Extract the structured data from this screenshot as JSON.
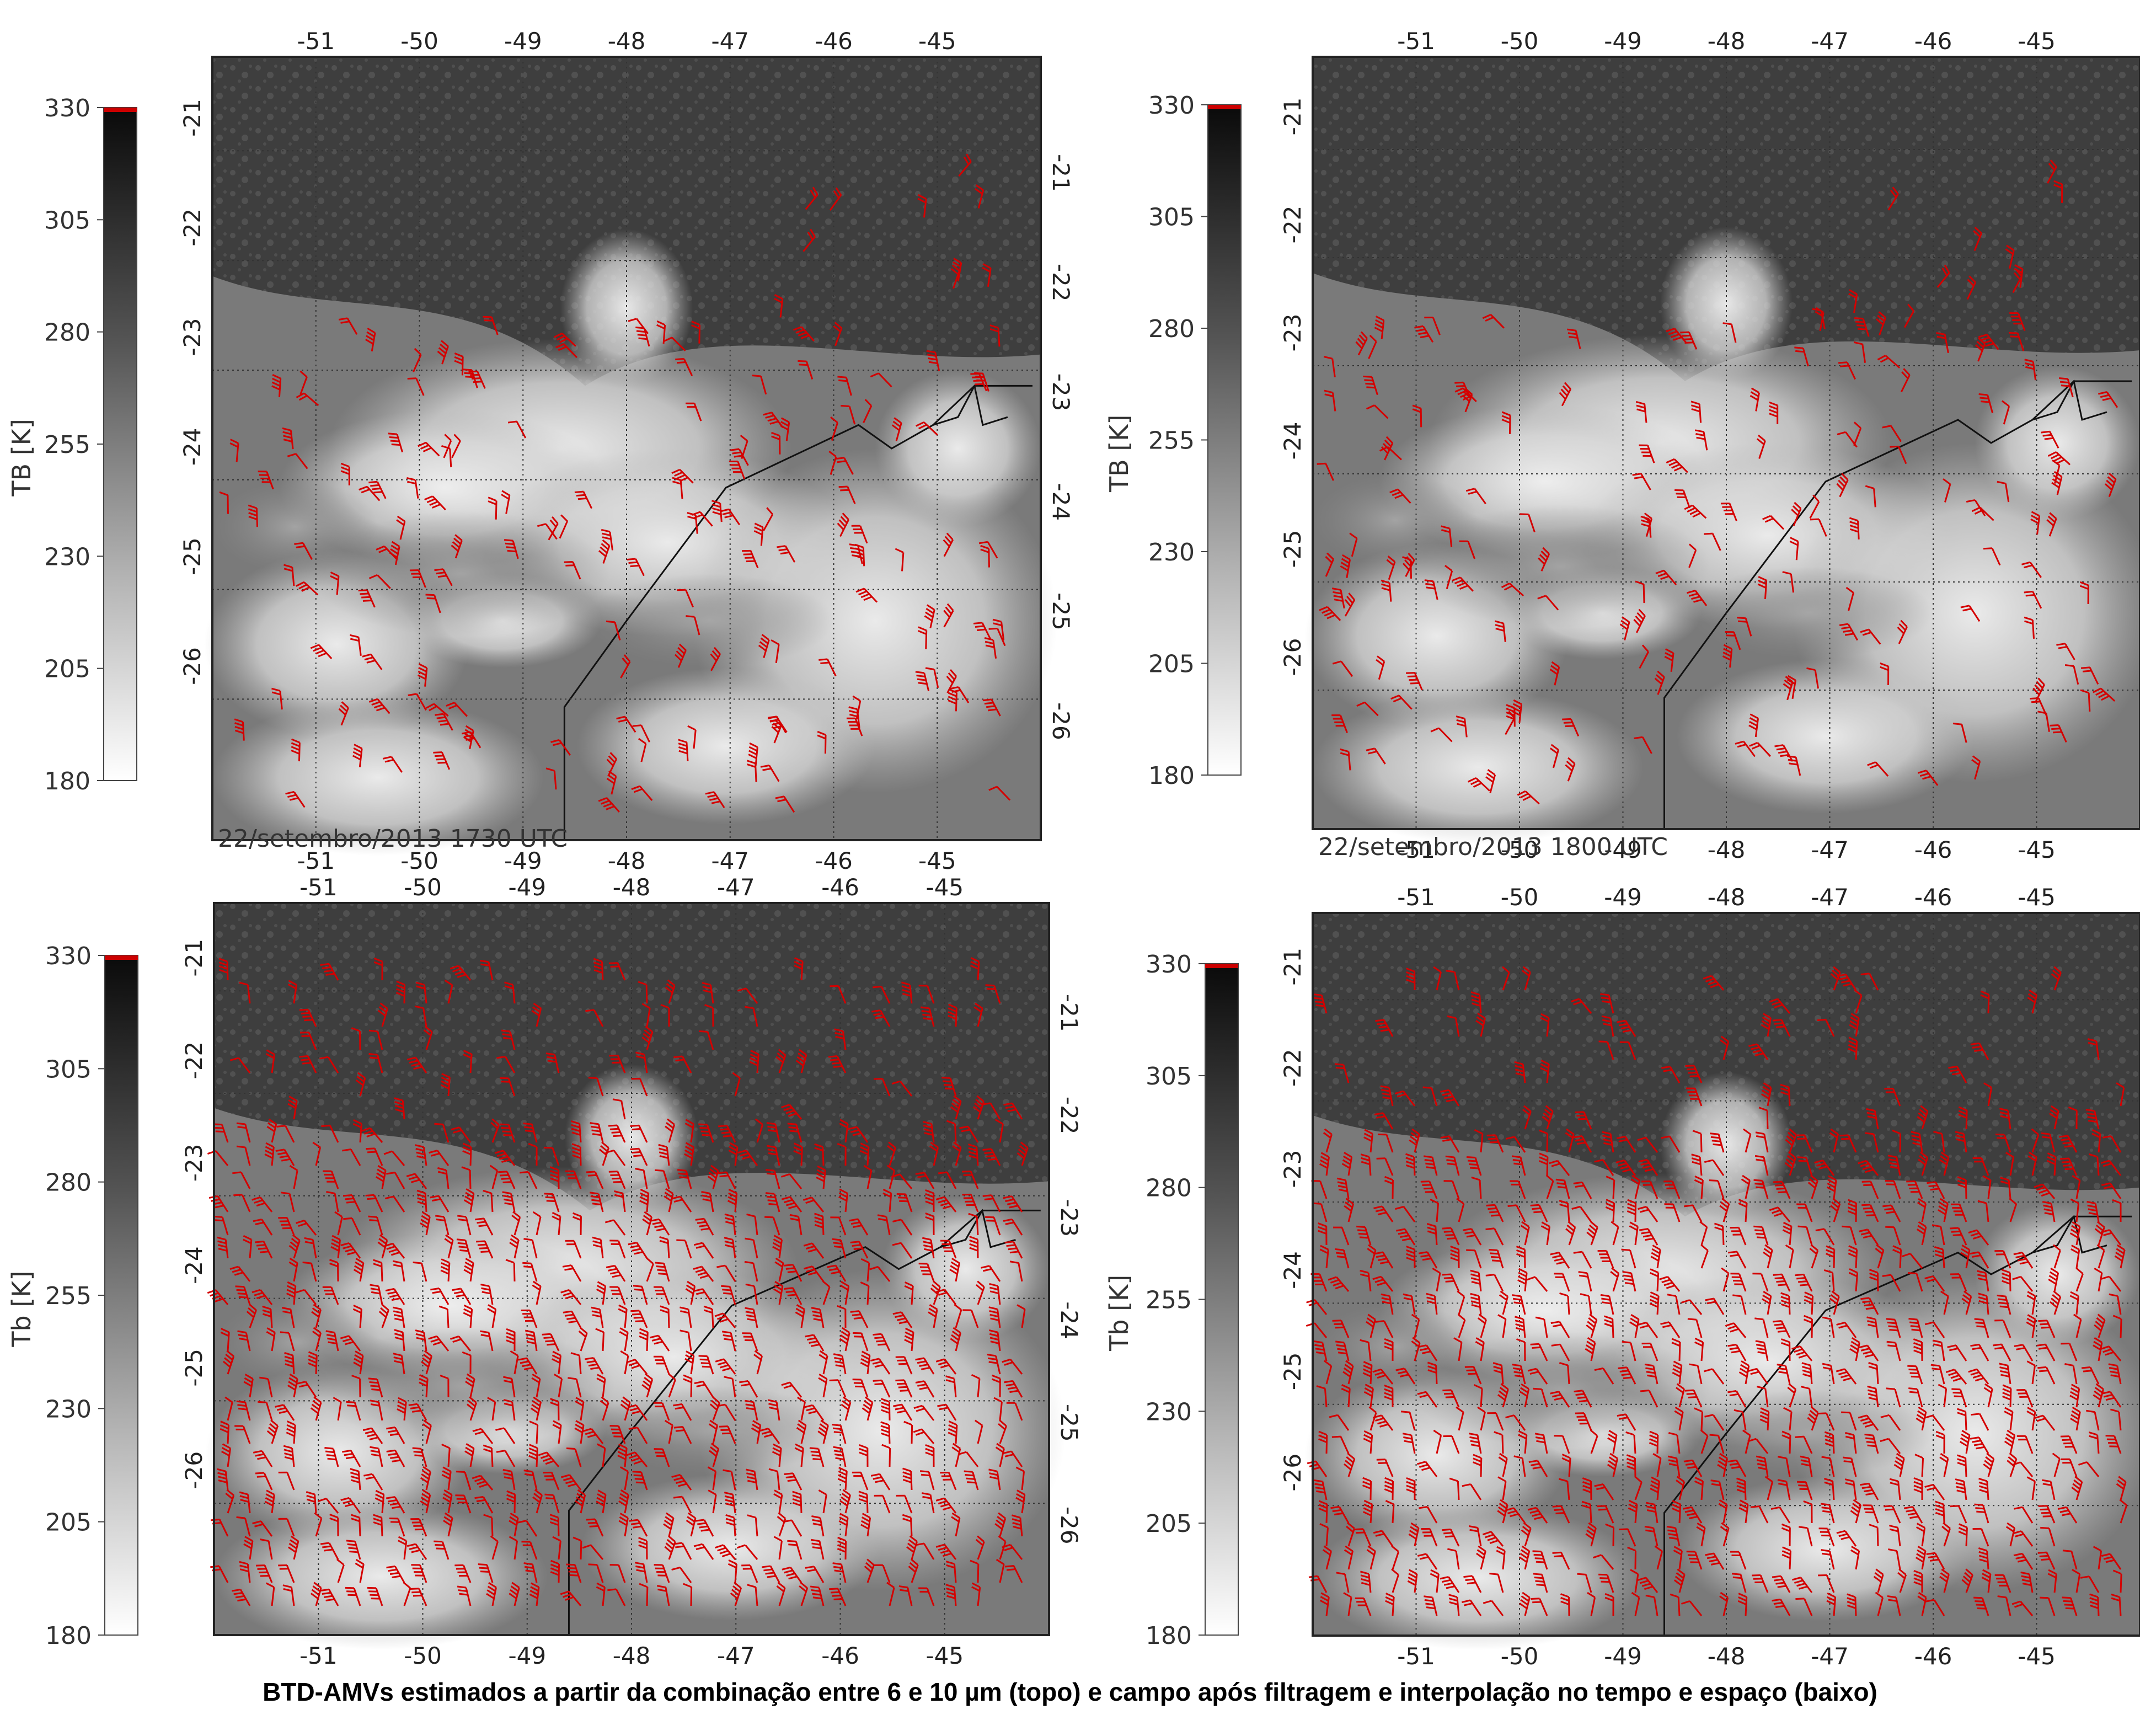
{
  "colorbar_ticks": [
    "330",
    "305",
    "280",
    "255",
    "230",
    "205",
    "180"
  ],
  "colorbar_labels": {
    "top": "TB [K]",
    "bottom": "Tb [K]"
  },
  "lon_ticks": [
    "-51",
    "-50",
    "-49",
    "-48",
    "-47",
    "-46",
    "-45"
  ],
  "lat_ticks": [
    "-21",
    "-22",
    "-23",
    "-24",
    "-25",
    "-26"
  ],
  "timestamps": [
    "22/setembro/2013 1730 UTC",
    "22/setembro/2013 1800 UTC"
  ],
  "caption": "BTD-AMVs estimados a partir da combinação entre 6 e 10 µm (topo) e campo após filtragem e interpolação no tempo e espaço (baixo)",
  "colors": {
    "wind_barbs": "#d40000",
    "boundary": "#111111",
    "colorbar_max": "#cc0000"
  },
  "panels": [
    {
      "id": "top-left",
      "colorbar_label": "TB [K]",
      "timestamp": "22/setembro/2013 1730 UTC",
      "barb_field": "sparse"
    },
    {
      "id": "top-right",
      "colorbar_label": "TB [K]",
      "timestamp": "22/setembro/2013 1800 UTC",
      "barb_field": "sparse"
    },
    {
      "id": "bottom-left",
      "colorbar_label": "Tb [K]",
      "barb_field": "interpolated"
    },
    {
      "id": "bottom-right",
      "colorbar_label": "Tb [K]",
      "barb_field": "interpolated"
    }
  ]
}
